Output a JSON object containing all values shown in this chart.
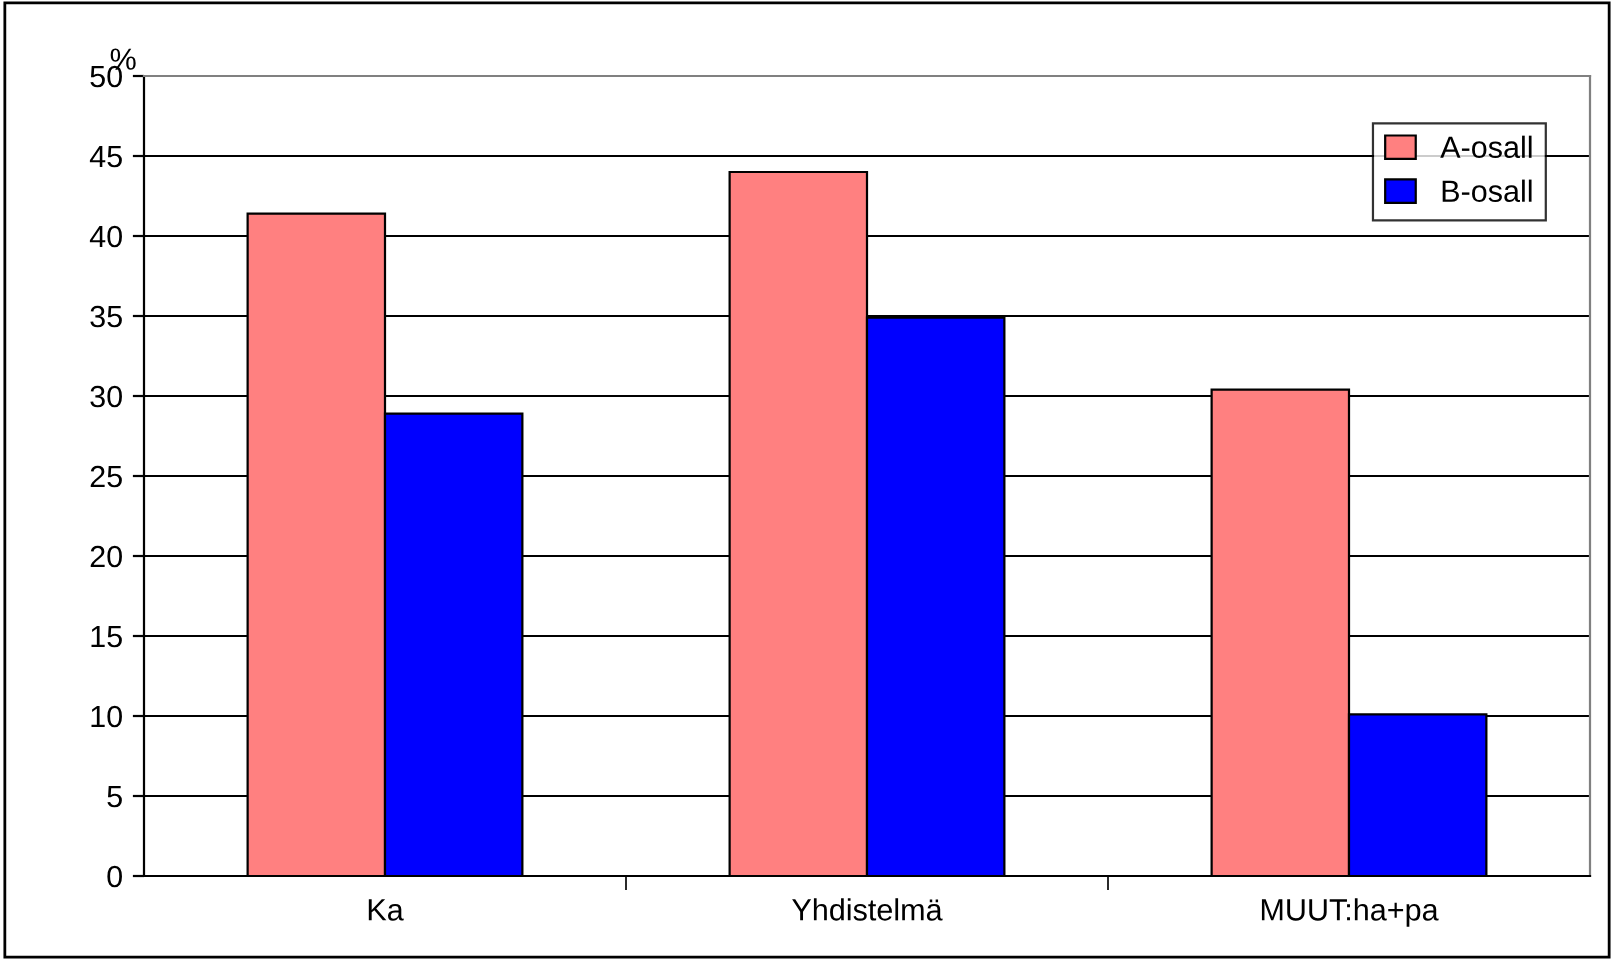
{
  "chart_data": {
    "type": "bar",
    "ylabel": "%",
    "categories": [
      "Ka",
      "Yhdistelmä",
      "MUUT:ha+pa"
    ],
    "series": [
      {
        "name": "A-osall",
        "color": "#ff8080",
        "values": [
          41.4,
          44.0,
          30.4
        ]
      },
      {
        "name": "B-osall",
        "color": "#0000ff",
        "values": [
          28.9,
          34.9,
          10.1
        ]
      }
    ],
    "ylim": [
      0,
      50
    ],
    "yticks": [
      0,
      5,
      10,
      15,
      20,
      25,
      30,
      35,
      40,
      45,
      50
    ],
    "grid": "y",
    "legend": "top right"
  }
}
